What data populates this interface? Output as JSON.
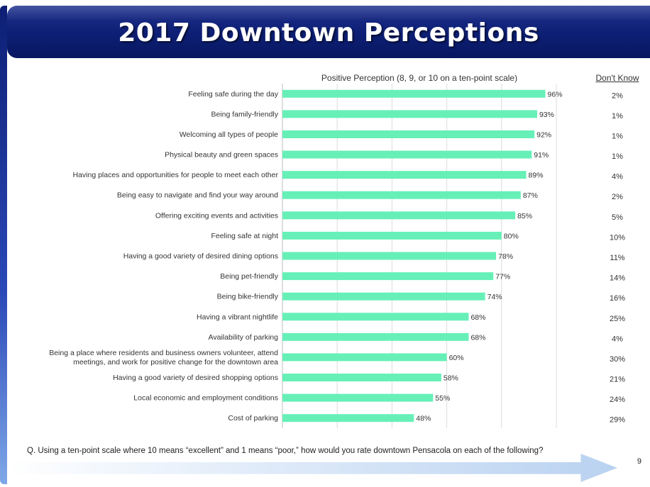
{
  "slide": {
    "title": "2017 Downtown Perceptions",
    "question": "Q. Using a ten-point scale where 10 means “excellent” and 1 means “poor,” how would you rate downtown Pensacola on each of the following?",
    "page_number": "9"
  },
  "chart_data": {
    "type": "bar",
    "orientation": "horizontal",
    "header": "Positive Perception (8, 9, or 10 on a ten-point scale)",
    "dont_know_header": "Don't Know",
    "xlim": [
      0,
      100
    ],
    "grid": true,
    "bar_color": "#66f0b8",
    "categories": [
      "Feeling safe during the day",
      "Being family-friendly",
      "Welcoming all types of people",
      "Physical beauty and green spaces",
      "Having places and opportunities for people to meet each other",
      "Being easy to navigate and find your way around",
      "Offering exciting events and activities",
      "Feeling safe at night",
      "Having a good variety of desired dining options",
      "Being pet-friendly",
      "Being bike-friendly",
      "Having a vibrant nightlife",
      "Availability of parking",
      "Being a place where residents and business owners volunteer, attend\nmeetings, and work for positive change for the downtown area",
      "Having a good variety of desired shopping options",
      "Local economic and employment conditions",
      "Cost of parking"
    ],
    "values": [
      96,
      93,
      92,
      91,
      89,
      87,
      85,
      80,
      78,
      77,
      74,
      68,
      68,
      60,
      58,
      55,
      48
    ],
    "value_labels": [
      "96%",
      "93%",
      "92%",
      "91%",
      "89%",
      "87%",
      "85%",
      "80%",
      "78%",
      "77%",
      "74%",
      "68%",
      "68%",
      "60%",
      "58%",
      "55%",
      "48%"
    ],
    "dont_know": [
      "2%",
      "1%",
      "1%",
      "1%",
      "4%",
      "2%",
      "5%",
      "10%",
      "11%",
      "14%",
      "16%",
      "25%",
      "4%",
      "30%",
      "21%",
      "24%",
      "29%"
    ]
  }
}
